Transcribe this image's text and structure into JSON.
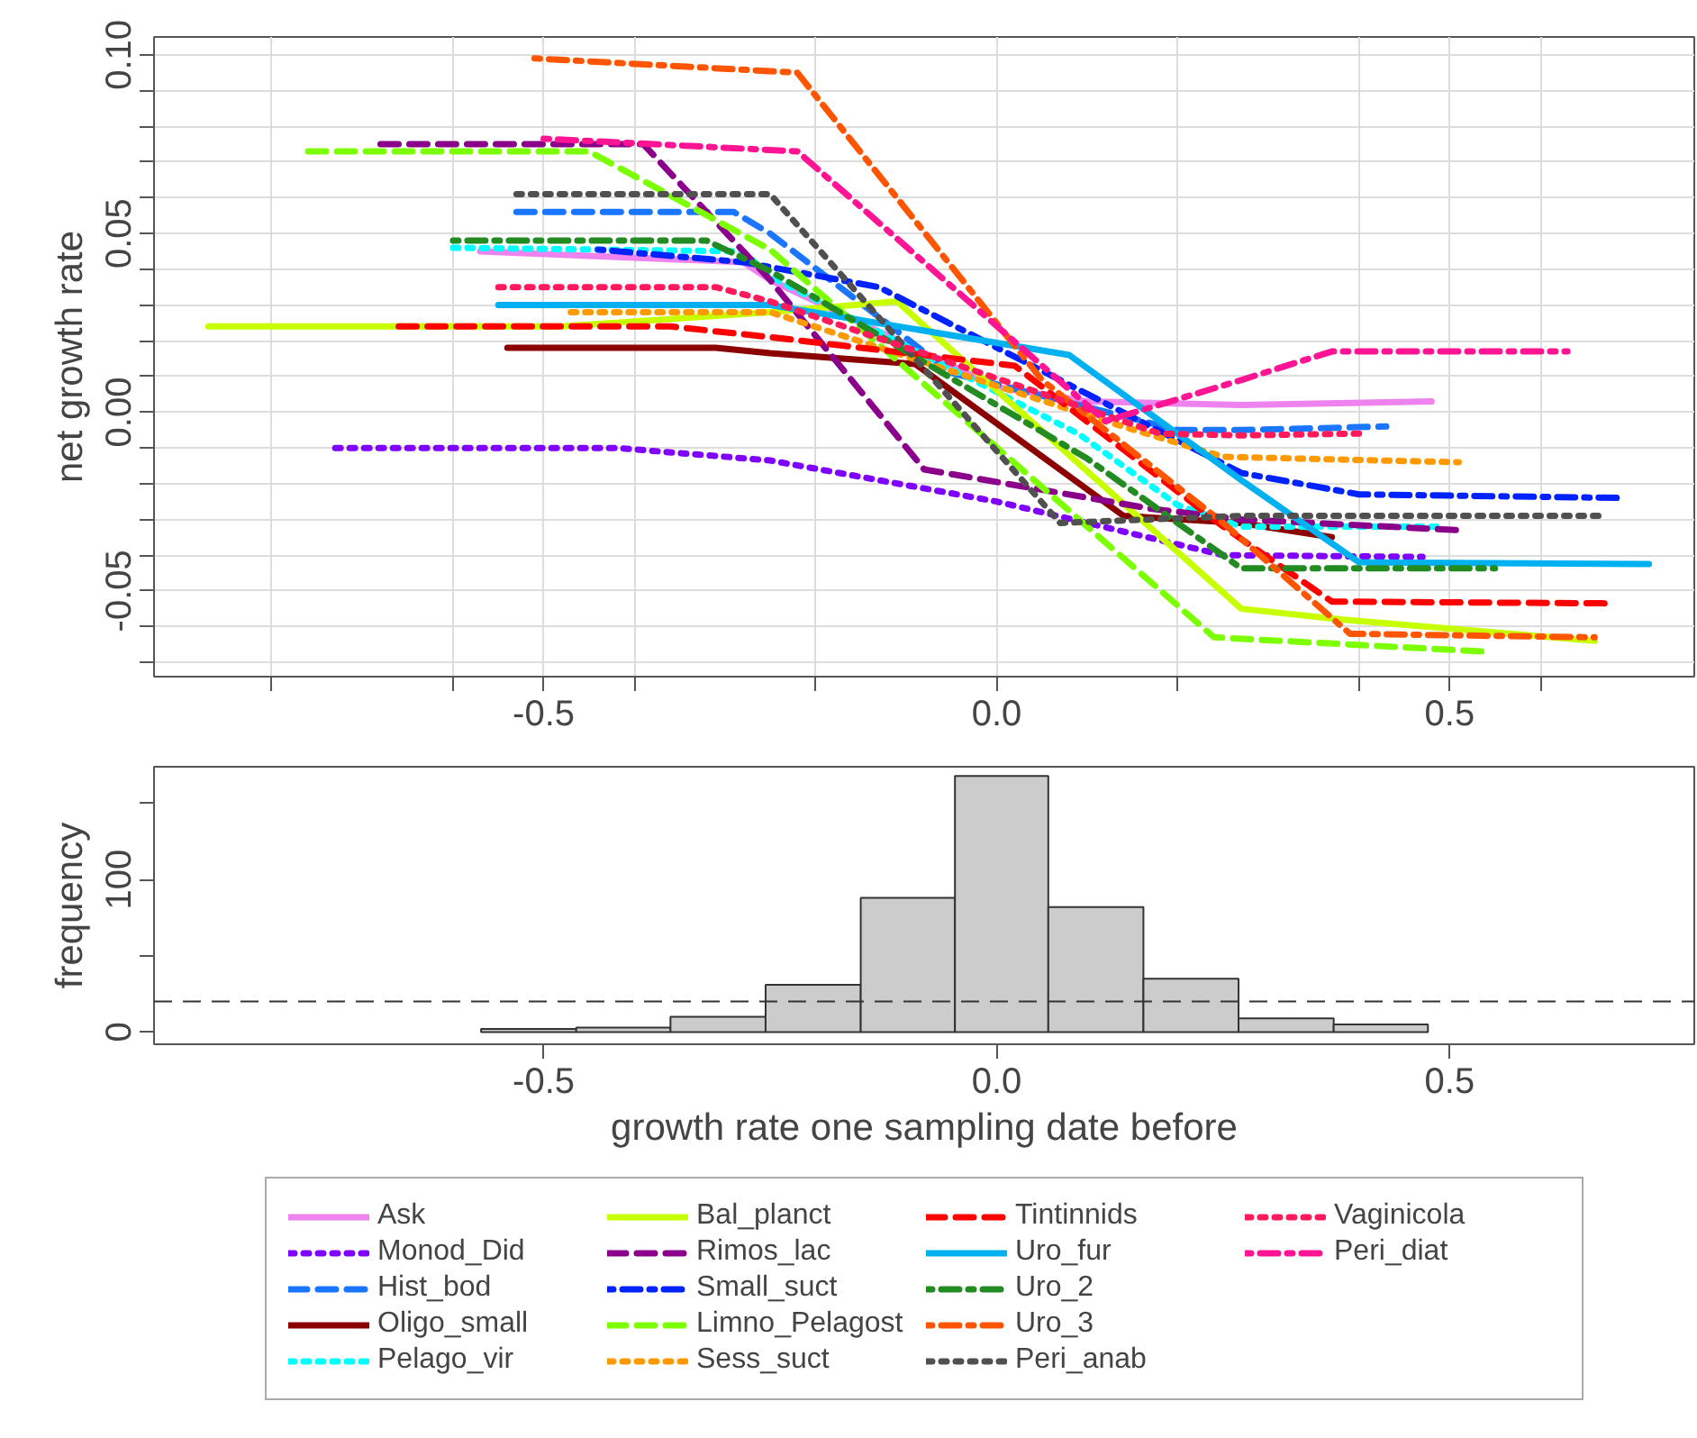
{
  "chart_data": [
    {
      "type": "line",
      "ylabel": "net growth rate",
      "xlim": [
        -0.93,
        0.77
      ],
      "ylim": [
        -0.074,
        0.105
      ],
      "xticks": [
        {
          "value": -0.8,
          "label": null
        },
        {
          "value": -0.6,
          "label": null
        },
        {
          "value": -0.5,
          "label": "-0.5"
        },
        {
          "value": -0.4,
          "label": null
        },
        {
          "value": -0.2,
          "label": null
        },
        {
          "value": 0,
          "label": "0.0"
        },
        {
          "value": 0.2,
          "label": null
        },
        {
          "value": 0.4,
          "label": null
        },
        {
          "value": 0.5,
          "label": "0.5"
        },
        {
          "value": 0.6,
          "label": null
        }
      ],
      "yticks": [
        {
          "value": -0.07,
          "label": null
        },
        {
          "value": -0.06,
          "label": null
        },
        -0.05,
        {
          "value": -0.04,
          "label": null
        },
        {
          "value": -0.03,
          "label": null
        },
        {
          "value": -0.02,
          "label": null
        },
        {
          "value": -0.01,
          "label": null
        },
        {
          "value": 0,
          "label": "0.00"
        },
        {
          "value": 0.01,
          "label": null
        },
        {
          "value": 0.02,
          "label": null
        },
        {
          "value": 0.03,
          "label": null
        },
        {
          "value": 0.04,
          "label": null
        },
        0.05,
        {
          "value": 0.06,
          "label": null
        },
        {
          "value": 0.07,
          "label": null
        },
        {
          "value": 0.08,
          "label": null
        },
        {
          "value": 0.09,
          "label": null
        },
        {
          "value": 0.1,
          "label": "0.10"
        }
      ],
      "grid": true,
      "legend": "bottom",
      "series": [
        {
          "name": "Ask",
          "color": "#ee82ee",
          "line_style": "solid",
          "x": [
            -0.57,
            -0.28,
            -0.25,
            0.0,
            0.1,
            0.27,
            0.48
          ],
          "values": [
            0.045,
            0.042,
            0.037,
            0.007,
            0.003,
            0.002,
            0.003
          ]
        },
        {
          "name": "Monod_Did",
          "color": "#8000ff",
          "line_style": "dotted",
          "x": [
            -0.73,
            -0.42,
            -0.25,
            0.0,
            0.25,
            0.47
          ],
          "values": [
            -0.01,
            -0.01,
            -0.0135,
            -0.025,
            -0.04,
            -0.0405
          ]
        },
        {
          "name": "Hist_bod",
          "color": "#1a75ff",
          "line_style": "dashed",
          "x": [
            -0.53,
            -0.29,
            -0.25,
            -0.05,
            0.2,
            0.27,
            0.43
          ],
          "values": [
            0.056,
            0.056,
            0.05,
            0.011,
            -0.005,
            -0.005,
            -0.004
          ]
        },
        {
          "name": "Oligo_small",
          "color": "#8b0000",
          "line_style": "solid",
          "x": [
            -0.54,
            -0.31,
            -0.25,
            -0.09,
            0.14,
            0.27,
            0.37
          ],
          "values": [
            0.018,
            0.018,
            0.0165,
            0.0135,
            -0.029,
            -0.031,
            -0.035
          ]
        },
        {
          "name": "Pelago_vir",
          "color": "#00ffff",
          "line_style": "dotted",
          "x": [
            -0.6,
            -0.28,
            -0.25,
            0.09,
            0.2,
            0.27,
            0.49
          ],
          "values": [
            0.046,
            0.045,
            0.038,
            -0.006,
            -0.026,
            -0.032,
            -0.032
          ]
        },
        {
          "name": "Bal_planct",
          "color": "#c8ff00",
          "line_style": "solid",
          "x": [
            -0.87,
            -0.48,
            -0.25,
            -0.11,
            0.27,
            0.38,
            0.66
          ],
          "values": [
            0.024,
            0.024,
            0.028,
            0.031,
            -0.055,
            -0.058,
            -0.064
          ]
        },
        {
          "name": "Rimos_lac",
          "color": "#8b008b",
          "line_style": "dashed",
          "x": [
            -0.68,
            -0.39,
            -0.25,
            -0.08,
            0.17,
            0.27,
            0.51
          ],
          "values": [
            0.075,
            0.075,
            0.037,
            -0.016,
            -0.027,
            -0.03,
            -0.033
          ]
        },
        {
          "name": "Small_suct",
          "color": "#0022ff",
          "line_style": "dashdot",
          "x": [
            -0.44,
            -0.28,
            -0.13,
            0.27,
            0.4,
            0.69
          ],
          "values": [
            0.0455,
            0.042,
            0.035,
            -0.017,
            -0.023,
            -0.024
          ]
        },
        {
          "name": "Limno_Pelagost",
          "color": "#7cff00",
          "line_style": "dashed",
          "x": [
            -0.76,
            -0.45,
            -0.25,
            0.24,
            0.54
          ],
          "values": [
            0.073,
            0.073,
            0.0455,
            -0.063,
            -0.067
          ]
        },
        {
          "name": "Sess_suct",
          "color": "#ff9900",
          "line_style": "dotted",
          "x": [
            -0.47,
            -0.25,
            0.12,
            0.25,
            0.51
          ],
          "values": [
            0.028,
            0.028,
            -0.0025,
            -0.0125,
            -0.014
          ]
        },
        {
          "name": "Tintinnids",
          "color": "#ff0000",
          "line_style": "dashed",
          "x": [
            -0.66,
            -0.36,
            -0.25,
            0.02,
            0.25,
            0.37,
            0.68
          ],
          "values": [
            0.024,
            0.024,
            0.021,
            0.013,
            -0.032,
            -0.053,
            -0.0535
          ]
        },
        {
          "name": "Uro_fur",
          "color": "#00b0f0",
          "line_style": "solid",
          "x": [
            -0.55,
            -0.25,
            0.08,
            0.27,
            0.4,
            0.72
          ],
          "values": [
            0.03,
            0.03,
            0.016,
            -0.019,
            -0.042,
            -0.0425
          ]
        },
        {
          "name": "Uro_2",
          "color": "#228b22",
          "line_style": "dashdot",
          "x": [
            -0.6,
            -0.32,
            -0.25,
            0.1,
            0.27,
            0.55
          ],
          "values": [
            0.048,
            0.048,
            0.0395,
            -0.013,
            -0.0437,
            -0.0437
          ]
        },
        {
          "name": "Uro_3",
          "color": "#ff5500",
          "line_style": "dashdot",
          "x": [
            -0.51,
            -0.22,
            0.05,
            0.25,
            0.39,
            0.66
          ],
          "values": [
            0.099,
            0.095,
            0.009,
            -0.031,
            -0.062,
            -0.063
          ]
        },
        {
          "name": "Peri_anab",
          "color": "#505050",
          "line_style": "dotted",
          "x": [
            -0.53,
            -0.25,
            0.07,
            0.27,
            0.67
          ],
          "values": [
            0.061,
            0.061,
            -0.031,
            -0.029,
            -0.029
          ]
        },
        {
          "name": "Vaginicola",
          "color": "#ff1a5c",
          "line_style": "dotted",
          "x": [
            -0.55,
            -0.31,
            -0.25,
            0.18,
            0.27,
            0.4
          ],
          "values": [
            0.035,
            0.035,
            0.031,
            -0.006,
            -0.0065,
            -0.006
          ]
        },
        {
          "name": "Peri_diat",
          "color": "#ff1493",
          "line_style": "dashdot",
          "x": [
            -0.5,
            -0.22,
            0.12,
            0.27,
            0.37,
            0.63
          ],
          "values": [
            0.0765,
            0.073,
            -0.0025,
            0.009,
            0.017,
            0.017
          ]
        }
      ]
    },
    {
      "type": "histogram",
      "xlabel": "growth rate one sampling date before",
      "ylabel": "frequency",
      "xlim": [
        -0.93,
        0.77
      ],
      "ylim": [
        -8,
        174
      ],
      "xticks": [
        {
          "value": -0.5,
          "label": "-0.5"
        },
        {
          "value": 0,
          "label": "0.0"
        },
        {
          "value": 0.5,
          "label": "0.5"
        }
      ],
      "yticks": [
        0,
        {
          "value": 50,
          "label": null
        },
        100,
        {
          "value": 150,
          "label": null
        }
      ],
      "color": "#cccccc",
      "bins": [
        -0.569,
        -0.464,
        -0.36,
        -0.255,
        -0.15,
        -0.046,
        0.057,
        0.162,
        0.267,
        0.372,
        0.476
      ],
      "values": [
        2,
        3,
        10,
        31,
        88,
        168,
        82,
        35,
        9,
        5
      ],
      "ref_lines": [
        {
          "axis": "y",
          "value": 20,
          "line_style": "dashed"
        }
      ]
    }
  ]
}
